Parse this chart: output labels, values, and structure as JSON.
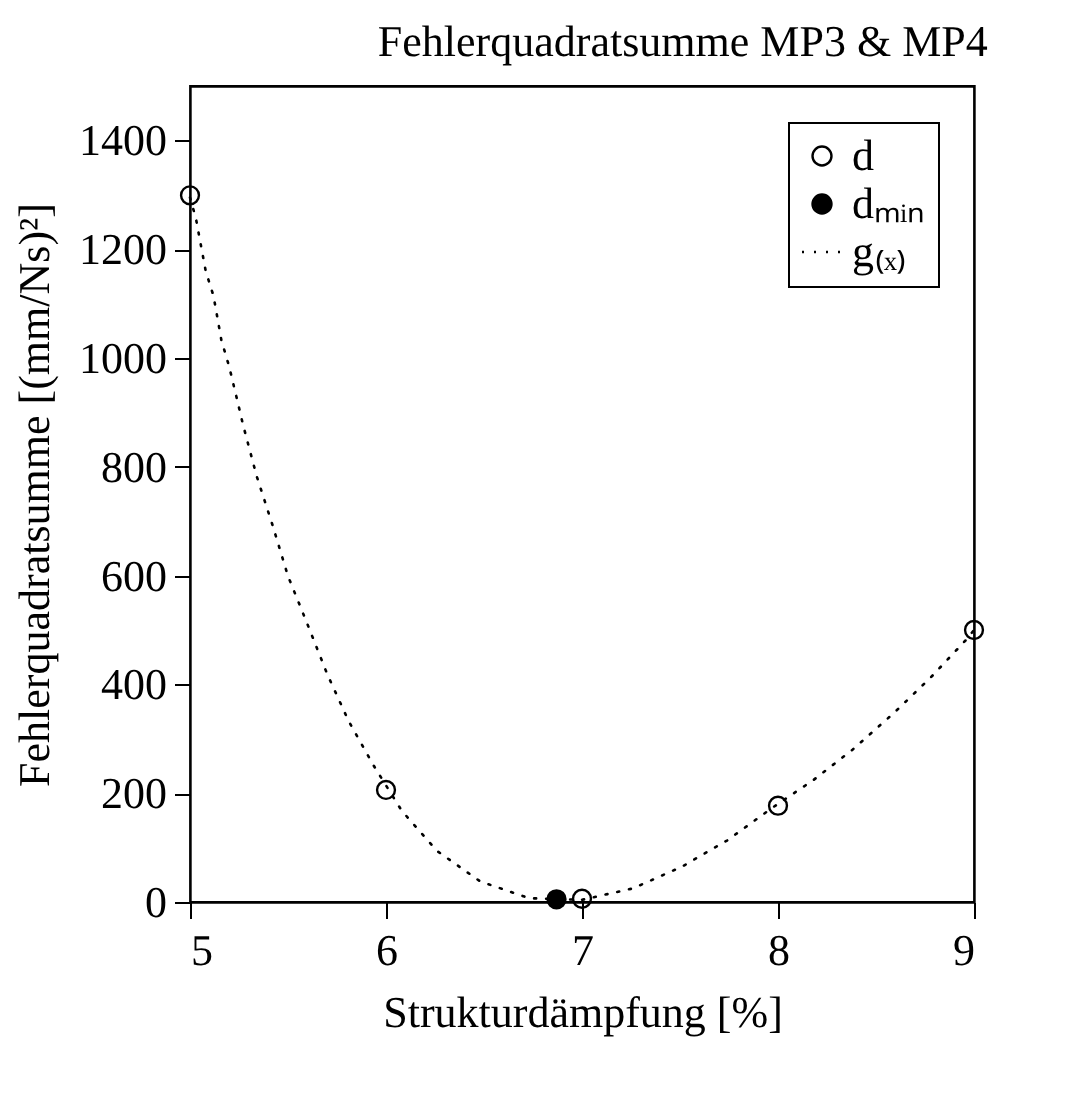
{
  "chart_data": {
    "type": "scatter",
    "title": "Fehlerquadratsumme MP3 & MP4",
    "xlabel": "Strukturdämpfung [%]",
    "ylabel": "Fehlerquadratsumme [(mm/Ns)²]",
    "xlim": [
      5,
      9
    ],
    "xticks": [
      5,
      6,
      7,
      8,
      9
    ],
    "ylim": [
      0,
      1500
    ],
    "yticks": [
      0,
      200,
      400,
      600,
      800,
      1000,
      1200,
      1400
    ],
    "grid": false,
    "legend": "top right",
    "series": [
      {
        "name": "d",
        "marker": "circle",
        "color": "#000000",
        "x": [
          5,
          6,
          7,
          8,
          9
        ],
        "values": [
          1299,
          206,
          6,
          177,
          500
        ]
      },
      {
        "name": "dₘᵢₙ",
        "marker": "circle",
        "color": "#000000",
        "x": [
          6.87
        ],
        "values": [
          5
        ]
      },
      {
        "name": "g₍ₓ₎",
        "type": "line",
        "line_style": "dotted",
        "color": "#000000",
        "x": [
          5,
          5.03,
          5.08,
          5.12,
          5.16,
          5.2,
          5.24,
          5.27,
          5.34,
          5.42,
          5.5,
          5.6,
          5.7,
          5.81,
          5.94,
          6.08,
          6.26,
          6.48,
          6.73,
          7,
          7.26,
          7.51,
          7.74,
          7.97,
          8.18,
          8.38,
          8.59,
          8.78,
          8.96,
          9
        ],
        "values": [
          1295,
          1257,
          1160,
          1114,
          1033,
          984,
          924,
          878,
          783,
          694,
          599,
          510,
          419,
          332,
          249,
          168,
          94,
          38,
          7,
          4,
          25,
          65,
          113,
          173,
          224,
          280,
          347,
          413,
          482,
          500
        ]
      }
    ]
  }
}
